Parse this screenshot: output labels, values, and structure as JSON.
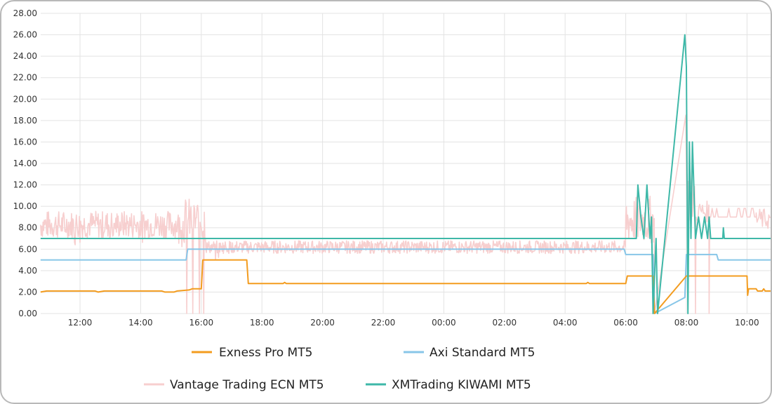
{
  "chart_data": {
    "type": "line",
    "title": "",
    "xlabel": "",
    "ylabel": "",
    "ylim": [
      0,
      28
    ],
    "grid": true,
    "legend_position": "bottom",
    "y_ticks": [
      "0.00",
      "2.00",
      "4.00",
      "6.00",
      "8.00",
      "10.00",
      "12.00",
      "14.00",
      "16.00",
      "18.00",
      "20.00",
      "22.00",
      "24.00",
      "26.00",
      "28.00"
    ],
    "x_ticks": [
      "12:00",
      "14:00",
      "16:00",
      "18:00",
      "20:00",
      "22:00",
      "00:00",
      "02:00",
      "04:00",
      "06:00",
      "08:00",
      "10:00"
    ],
    "x_range_hours": [
      10.7,
      34.8
    ],
    "series": [
      {
        "name": "Exness Pro MT5",
        "color": "#f39c1f",
        "points": [
          [
            10.7,
            2.0
          ],
          [
            10.9,
            2.1
          ],
          [
            12.5,
            2.1
          ],
          [
            12.6,
            2.0
          ],
          [
            12.8,
            2.1
          ],
          [
            14.7,
            2.1
          ],
          [
            14.8,
            2.0
          ],
          [
            15.1,
            2.0
          ],
          [
            15.2,
            2.1
          ],
          [
            15.6,
            2.2
          ],
          [
            15.7,
            2.3
          ],
          [
            15.9,
            2.3
          ],
          [
            16.0,
            2.3
          ],
          [
            16.05,
            5.0
          ],
          [
            17.5,
            5.0
          ],
          [
            17.55,
            2.8
          ],
          [
            18.7,
            2.8
          ],
          [
            18.75,
            2.9
          ],
          [
            18.8,
            2.8
          ],
          [
            28.7,
            2.8
          ],
          [
            28.75,
            2.9
          ],
          [
            28.8,
            2.8
          ],
          [
            30.0,
            2.8
          ],
          [
            30.05,
            3.5
          ],
          [
            30.9,
            3.5
          ],
          [
            30.95,
            0.0
          ],
          [
            32.0,
            3.5
          ],
          [
            33.9,
            3.5
          ],
          [
            34.0,
            3.5
          ],
          [
            34.02,
            1.7
          ],
          [
            34.05,
            2.3
          ],
          [
            34.3,
            2.3
          ],
          [
            34.35,
            2.1
          ],
          [
            34.5,
            2.1
          ],
          [
            34.55,
            2.3
          ],
          [
            34.6,
            2.1
          ],
          [
            34.8,
            2.1
          ]
        ]
      },
      {
        "name": "Axi Standard MT5",
        "color": "#88c6e8",
        "points": [
          [
            10.7,
            5.0
          ],
          [
            15.5,
            5.0
          ],
          [
            15.55,
            6.0
          ],
          [
            29.95,
            6.0
          ],
          [
            30.0,
            5.5
          ],
          [
            30.9,
            5.5
          ],
          [
            30.95,
            0.0
          ],
          [
            31.95,
            1.5
          ],
          [
            32.0,
            5.5
          ],
          [
            33.0,
            5.5
          ],
          [
            33.05,
            5.0
          ],
          [
            34.8,
            5.0
          ]
        ]
      },
      {
        "name": "Vantage Trading ECN MT5",
        "color": "#f7cfcf",
        "points": "noisy: ~7-9.5 from 10:42 to 15:30, spikes to 11 and drops to 0 near 15:50-16:10, ~5.5-6.8 from 16:00 to 06:00, 6-11 from 06:00 to 06:55, line to 18.5 at 08:00, drops to 0 near 08:10 and 08:35, ~8.5-10 from 08:20, flat 9.0 to 10:40"
      },
      {
        "name": "XMTrading KIWAMI MT5",
        "color": "#3eb8a8",
        "points": [
          [
            10.7,
            7.0
          ],
          [
            30.35,
            7.0
          ],
          [
            30.4,
            12.0
          ],
          [
            30.5,
            9.0
          ],
          [
            30.6,
            7.0
          ],
          [
            30.7,
            12.0
          ],
          [
            30.8,
            7.0
          ],
          [
            30.85,
            9.0
          ],
          [
            30.9,
            0.0
          ],
          [
            31.0,
            7.0
          ],
          [
            31.05,
            0.0
          ],
          [
            31.95,
            26.0
          ],
          [
            32.0,
            23.0
          ],
          [
            32.05,
            0.0
          ],
          [
            32.1,
            16.0
          ],
          [
            32.15,
            7.0
          ],
          [
            32.2,
            16.0
          ],
          [
            32.3,
            7.0
          ],
          [
            32.4,
            9.0
          ],
          [
            32.5,
            7.0
          ],
          [
            32.6,
            9.0
          ],
          [
            32.7,
            7.0
          ],
          [
            32.75,
            9.0
          ],
          [
            32.8,
            7.0
          ],
          [
            33.2,
            7.0
          ],
          [
            33.22,
            8.0
          ],
          [
            33.25,
            7.0
          ],
          [
            34.8,
            7.0
          ]
        ]
      }
    ]
  },
  "legend": {
    "items": [
      {
        "label": "Exness Pro MT5",
        "color": "#f39c1f"
      },
      {
        "label": "Axi Standard MT5",
        "color": "#88c6e8"
      },
      {
        "label": "Vantage Trading ECN MT5",
        "color": "#f7cfcf"
      },
      {
        "label": "XMTrading KIWAMI MT5",
        "color": "#3eb8a8"
      }
    ]
  },
  "axes": {
    "y_labels": [
      "28.00",
      "26.00",
      "24.00",
      "22.00",
      "20.00",
      "18.00",
      "16.00",
      "14.00",
      "12.00",
      "10.00",
      "8.00",
      "6.00",
      "4.00",
      "2.00",
      "0.00"
    ],
    "x_labels": [
      "12:00",
      "14:00",
      "16:00",
      "18:00",
      "20:00",
      "22:00",
      "00:00",
      "02:00",
      "04:00",
      "06:00",
      "08:00",
      "10:00"
    ]
  }
}
